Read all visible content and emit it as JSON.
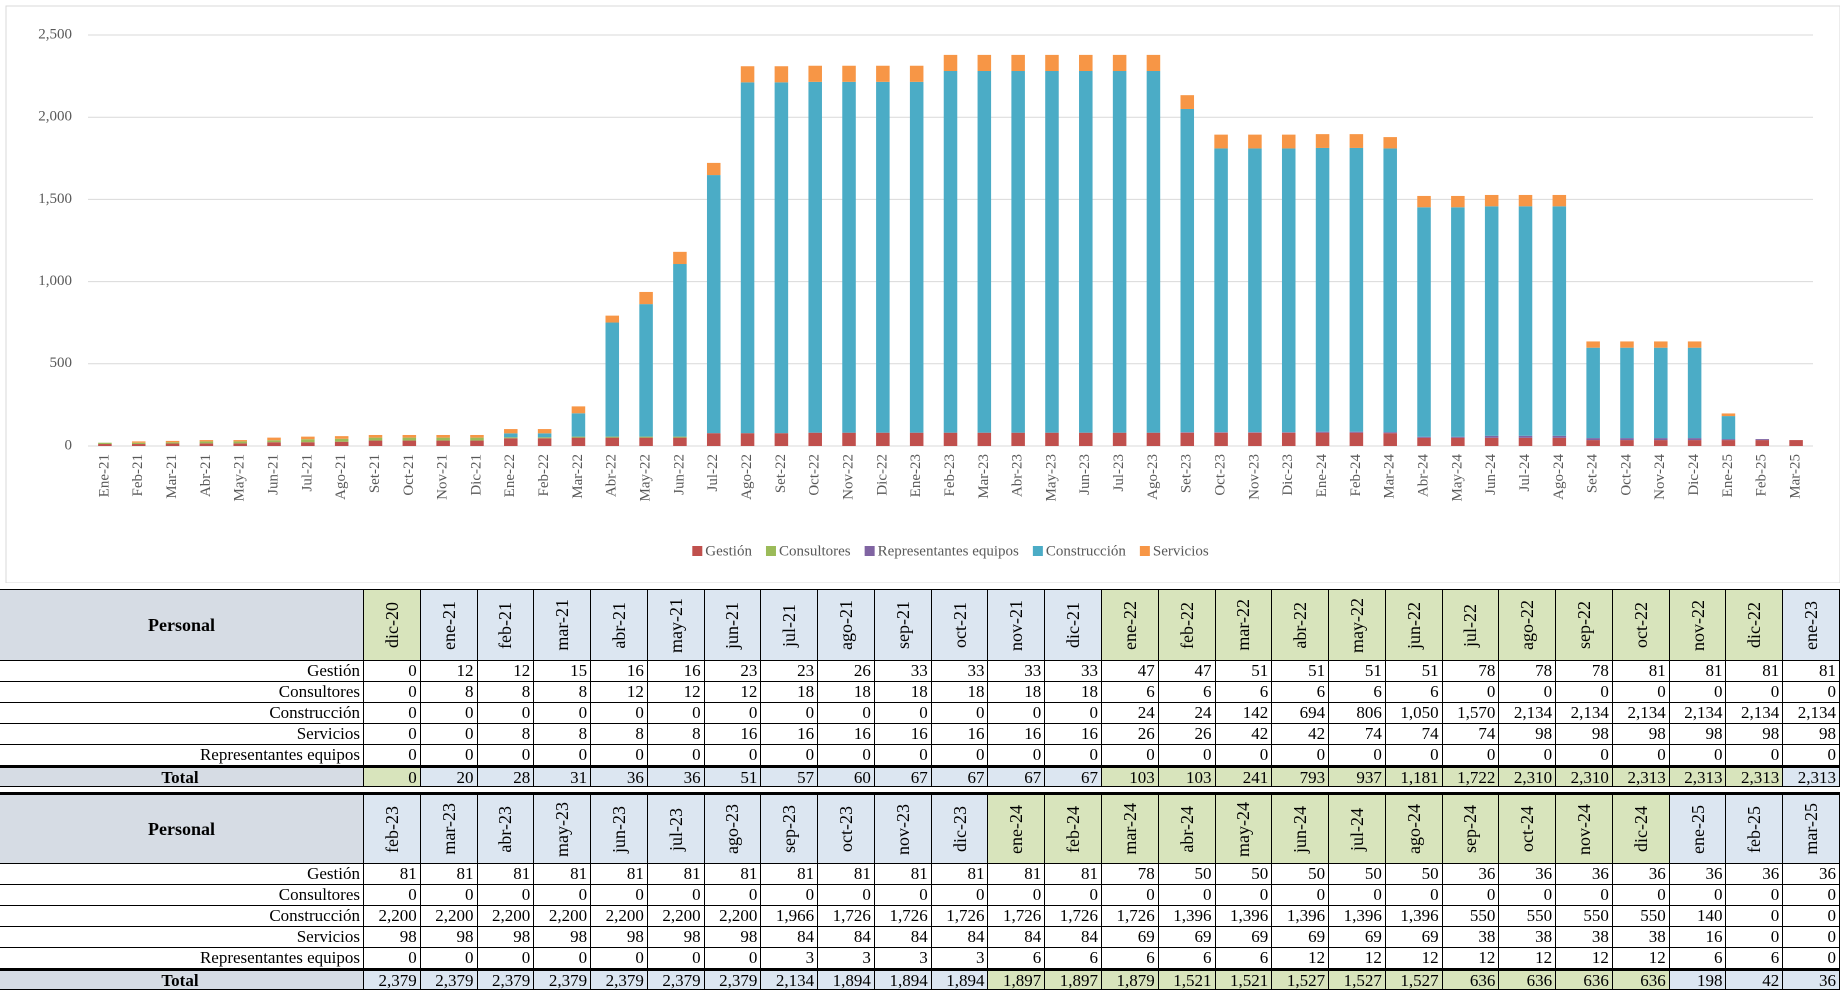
{
  "chart_data": {
    "type": "bar",
    "stacked": true,
    "categories": [
      "Ene-21",
      "Feb-21",
      "Mar-21",
      "Abr-21",
      "May-21",
      "Jun-21",
      "Jul-21",
      "Ago-21",
      "Set-21",
      "Oct-21",
      "Nov-21",
      "Dic-21",
      "Ene-22",
      "Feb-22",
      "Mar-22",
      "Abr-22",
      "May-22",
      "Jun-22",
      "Jul-22",
      "Ago-22",
      "Set-22",
      "Oct-22",
      "Nov-22",
      "Dic-22",
      "Ene-23",
      "Feb-23",
      "Mar-23",
      "Abr-23",
      "May-23",
      "Jun-23",
      "Jul-23",
      "Ago-23",
      "Set-23",
      "Oct-23",
      "Nov-23",
      "Dic-23",
      "Ene-24",
      "Feb-24",
      "Mar-24",
      "Abr-24",
      "May-24",
      "Jun-24",
      "Jul-24",
      "Ago-24",
      "Set-24",
      "Oct-24",
      "Nov-24",
      "Dic-24",
      "Ene-25",
      "Feb-25",
      "Mar-25"
    ],
    "series": [
      {
        "name": "Gestión",
        "color": "#c0504d",
        "values": [
          12,
          12,
          15,
          16,
          16,
          23,
          23,
          26,
          33,
          33,
          33,
          33,
          47,
          47,
          51,
          51,
          51,
          51,
          78,
          78,
          78,
          81,
          81,
          81,
          81,
          81,
          81,
          81,
          81,
          81,
          81,
          81,
          81,
          81,
          81,
          81,
          81,
          81,
          78,
          50,
          50,
          50,
          50,
          50,
          36,
          36,
          36,
          36,
          36,
          36,
          36
        ]
      },
      {
        "name": "Consultores",
        "color": "#9bbb59",
        "values": [
          8,
          8,
          8,
          12,
          12,
          12,
          18,
          18,
          18,
          18,
          18,
          18,
          6,
          6,
          6,
          6,
          6,
          6,
          0,
          0,
          0,
          0,
          0,
          0,
          0,
          0,
          0,
          0,
          0,
          0,
          0,
          0,
          0,
          0,
          0,
          0,
          0,
          0,
          0,
          0,
          0,
          0,
          0,
          0,
          0,
          0,
          0,
          0,
          0,
          0,
          0
        ]
      },
      {
        "name": "Representantes equipos",
        "color": "#8064a2",
        "values": [
          0,
          0,
          0,
          0,
          0,
          0,
          0,
          0,
          0,
          0,
          0,
          0,
          0,
          0,
          0,
          0,
          0,
          0,
          0,
          0,
          0,
          0,
          0,
          0,
          0,
          0,
          0,
          0,
          0,
          0,
          0,
          0,
          3,
          3,
          3,
          3,
          6,
          6,
          6,
          6,
          6,
          12,
          12,
          12,
          12,
          12,
          12,
          12,
          6,
          6,
          0
        ]
      },
      {
        "name": "Construcción",
        "color": "#4bacc6",
        "values": [
          0,
          0,
          0,
          0,
          0,
          0,
          0,
          0,
          0,
          0,
          0,
          0,
          24,
          24,
          142,
          694,
          806,
          1050,
          1570,
          2134,
          2134,
          2134,
          2134,
          2134,
          2134,
          2200,
          2200,
          2200,
          2200,
          2200,
          2200,
          2200,
          1966,
          1726,
          1726,
          1726,
          1726,
          1726,
          1726,
          1396,
          1396,
          1396,
          1396,
          1396,
          550,
          550,
          550,
          550,
          140,
          0,
          0
        ]
      },
      {
        "name": "Servicios",
        "color": "#f79646",
        "values": [
          0,
          8,
          8,
          8,
          8,
          16,
          16,
          16,
          16,
          16,
          16,
          16,
          26,
          26,
          42,
          42,
          74,
          74,
          74,
          98,
          98,
          98,
          98,
          98,
          98,
          98,
          98,
          98,
          98,
          98,
          98,
          98,
          84,
          84,
          84,
          84,
          84,
          84,
          69,
          69,
          69,
          69,
          69,
          69,
          38,
          38,
          38,
          38,
          16,
          0,
          0
        ]
      }
    ],
    "ylim": [
      0,
      2500
    ],
    "yticks": [
      0,
      500,
      {
        "value": 1000,
        "label": "1,000"
      },
      {
        "value": 1500,
        "label": "1,500"
      },
      {
        "value": 2000,
        "label": "2,000"
      },
      {
        "value": 2500,
        "label": "2,500"
      }
    ],
    "grid": true,
    "legend": "bottom"
  },
  "tables": [
    {
      "header": "Personal",
      "columns": [
        "dic-20",
        "ene-21",
        "feb-21",
        "mar-21",
        "abr-21",
        "may-21",
        "jun-21",
        "jul-21",
        "ago-21",
        "sep-21",
        "oct-21",
        "nov-21",
        "dic-21",
        "ene-22",
        "feb-22",
        "mar-22",
        "abr-22",
        "may-22",
        "jun-22",
        "jul-22",
        "ago-22",
        "sep-22",
        "oct-22",
        "nov-22",
        "dic-22",
        "ene-23"
      ],
      "rows": [
        {
          "label": "Gestión",
          "values": [
            "0",
            "12",
            "12",
            "15",
            "16",
            "16",
            "23",
            "23",
            "26",
            "33",
            "33",
            "33",
            "33",
            "47",
            "47",
            "51",
            "51",
            "51",
            "51",
            "78",
            "78",
            "78",
            "81",
            "81",
            "81",
            "81"
          ]
        },
        {
          "label": "Consultores",
          "values": [
            "0",
            "8",
            "8",
            "8",
            "12",
            "12",
            "12",
            "18",
            "18",
            "18",
            "18",
            "18",
            "18",
            "6",
            "6",
            "6",
            "6",
            "6",
            "6",
            "0",
            "0",
            "0",
            "0",
            "0",
            "0",
            "0"
          ]
        },
        {
          "label": "Construcción",
          "values": [
            "0",
            "0",
            "0",
            "0",
            "0",
            "0",
            "0",
            "0",
            "0",
            "0",
            "0",
            "0",
            "0",
            "24",
            "24",
            "142",
            "694",
            "806",
            "1,050",
            "1,570",
            "2,134",
            "2,134",
            "2,134",
            "2,134",
            "2,134",
            "2,134"
          ]
        },
        {
          "label": "Servicios",
          "values": [
            "0",
            "0",
            "8",
            "8",
            "8",
            "8",
            "16",
            "16",
            "16",
            "16",
            "16",
            "16",
            "16",
            "26",
            "26",
            "42",
            "42",
            "74",
            "74",
            "74",
            "98",
            "98",
            "98",
            "98",
            "98",
            "98"
          ]
        },
        {
          "label": "Representantes equipos",
          "values": [
            "0",
            "0",
            "0",
            "0",
            "0",
            "0",
            "0",
            "0",
            "0",
            "0",
            "0",
            "0",
            "0",
            "0",
            "0",
            "0",
            "0",
            "0",
            "0",
            "0",
            "0",
            "0",
            "0",
            "0",
            "0",
            "0"
          ]
        }
      ],
      "total": {
        "label": "Total",
        "values": [
          "0",
          "20",
          "28",
          "31",
          "36",
          "36",
          "51",
          "57",
          "60",
          "67",
          "67",
          "67",
          "67",
          "103",
          "103",
          "241",
          "793",
          "937",
          "1,181",
          "1,722",
          "2,310",
          "2,310",
          "2,313",
          "2,313",
          "2,313",
          "2,313"
        ]
      }
    },
    {
      "header": "Personal",
      "columns": [
        "feb-23",
        "mar-23",
        "abr-23",
        "may-23",
        "jun-23",
        "jul-23",
        "ago-23",
        "sep-23",
        "oct-23",
        "nov-23",
        "dic-23",
        "ene-24",
        "feb-24",
        "mar-24",
        "abr-24",
        "may-24",
        "jun-24",
        "jul-24",
        "ago-24",
        "sep-24",
        "oct-24",
        "nov-24",
        "dic-24",
        "ene-25",
        "feb-25",
        "mar-25"
      ],
      "rows": [
        {
          "label": "Gestión",
          "values": [
            "81",
            "81",
            "81",
            "81",
            "81",
            "81",
            "81",
            "81",
            "81",
            "81",
            "81",
            "81",
            "81",
            "78",
            "50",
            "50",
            "50",
            "50",
            "50",
            "36",
            "36",
            "36",
            "36",
            "36",
            "36",
            "36"
          ]
        },
        {
          "label": "Consultores",
          "values": [
            "0",
            "0",
            "0",
            "0",
            "0",
            "0",
            "0",
            "0",
            "0",
            "0",
            "0",
            "0",
            "0",
            "0",
            "0",
            "0",
            "0",
            "0",
            "0",
            "0",
            "0",
            "0",
            "0",
            "0",
            "0",
            "0"
          ]
        },
        {
          "label": "Construcción",
          "values": [
            "2,200",
            "2,200",
            "2,200",
            "2,200",
            "2,200",
            "2,200",
            "2,200",
            "1,966",
            "1,726",
            "1,726",
            "1,726",
            "1,726",
            "1,726",
            "1,726",
            "1,396",
            "1,396",
            "1,396",
            "1,396",
            "1,396",
            "550",
            "550",
            "550",
            "550",
            "140",
            "0",
            "0"
          ]
        },
        {
          "label": "Servicios",
          "values": [
            "98",
            "98",
            "98",
            "98",
            "98",
            "98",
            "98",
            "84",
            "84",
            "84",
            "84",
            "84",
            "84",
            "69",
            "69",
            "69",
            "69",
            "69",
            "69",
            "38",
            "38",
            "38",
            "38",
            "16",
            "0",
            "0"
          ]
        },
        {
          "label": "Representantes equipos",
          "values": [
            "0",
            "0",
            "0",
            "0",
            "0",
            "0",
            "0",
            "3",
            "3",
            "3",
            "3",
            "6",
            "6",
            "6",
            "6",
            "6",
            "12",
            "12",
            "12",
            "12",
            "12",
            "12",
            "12",
            "6",
            "6",
            "0"
          ]
        }
      ],
      "total": {
        "label": "Total",
        "values": [
          "2,379",
          "2,379",
          "2,379",
          "2,379",
          "2,379",
          "2,379",
          "2,379",
          "2,134",
          "1,894",
          "1,894",
          "1,894",
          "1,897",
          "1,897",
          "1,879",
          "1,521",
          "1,521",
          "1,527",
          "1,527",
          "1,527",
          "636",
          "636",
          "636",
          "636",
          "198",
          "42",
          "36"
        ]
      }
    }
  ]
}
